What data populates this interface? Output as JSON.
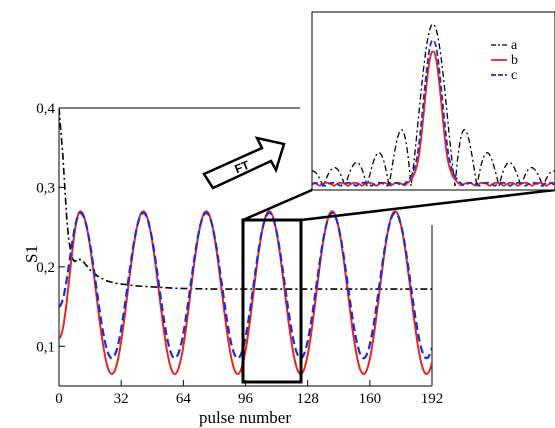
{
  "chart_data": [
    {
      "type": "line",
      "title": "",
      "xlabel": "pulse number",
      "ylabel": "S1",
      "xlim": [
        0,
        192
      ],
      "ylim": [
        0.05,
        0.4
      ],
      "xticks": [
        0,
        32,
        64,
        96,
        128,
        160,
        192
      ],
      "xtick_labels": [
        "0",
        "32",
        "64",
        "96",
        "128",
        "160",
        "192"
      ],
      "yticks": [
        0.1,
        0.2,
        0.3,
        0.4
      ],
      "ytick_labels": [
        "0,1",
        "0,2",
        "0,3",
        "0,4"
      ],
      "period": 32.4,
      "first_peak_x": 11,
      "series": [
        {
          "name": "a",
          "color": "#000000",
          "style": "dash-dot",
          "x": [
            0,
            1,
            2,
            3,
            4,
            5,
            6,
            7,
            8,
            9,
            10,
            12,
            14,
            16,
            20,
            25,
            30,
            40,
            60,
            80,
            100,
            120,
            140,
            160,
            180,
            192
          ],
          "y": [
            0.4,
            0.37,
            0.34,
            0.3,
            0.26,
            0.235,
            0.22,
            0.21,
            0.207,
            0.208,
            0.21,
            0.208,
            0.202,
            0.196,
            0.188,
            0.182,
            0.179,
            0.176,
            0.173,
            0.172,
            0.172,
            0.172,
            0.172,
            0.172,
            0.172,
            0.172
          ]
        },
        {
          "name": "b",
          "color": "#e8251f",
          "style": "solid",
          "min": 0.065,
          "max": 0.27,
          "start": 0.11
        },
        {
          "name": "c",
          "color": "#1b2bd6",
          "style": "dashed",
          "min": 0.085,
          "max": 0.268,
          "start": 0.15
        }
      ]
    },
    {
      "type": "line",
      "title": "",
      "inset": true,
      "source_annotation": "FT",
      "series": [
        {
          "name": "a",
          "color": "#000000",
          "style": "dash-dot",
          "peak": 1.0,
          "sidelobes": true
        },
        {
          "name": "b",
          "color": "#e8251f",
          "style": "solid",
          "peak": 0.83,
          "sidelobes": false
        },
        {
          "name": "c",
          "color": "#1b2bd6",
          "style": "dashed",
          "peak": 0.9,
          "sidelobes": false
        }
      ],
      "legend": {
        "placement": "top-right",
        "labels": [
          "a",
          "b",
          "c"
        ]
      }
    }
  ],
  "annotations": {
    "arrow_label": "FT",
    "highlight_range": [
      96,
      128
    ]
  }
}
